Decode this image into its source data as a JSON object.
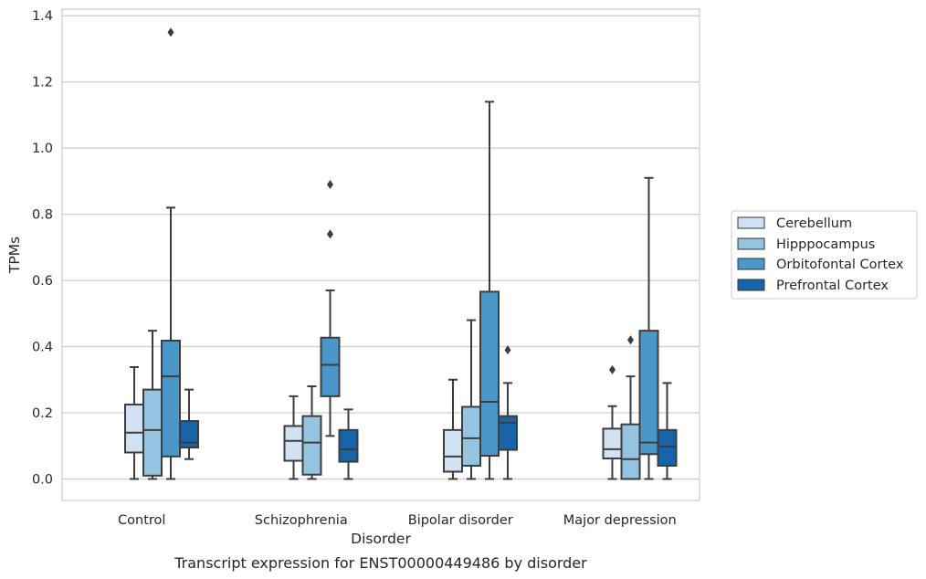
{
  "chart_data": {
    "type": "box",
    "title": "",
    "caption": "Transcript expression for ENST00000449486 by disorder",
    "xlabel": "Disorder",
    "ylabel": "TPMs",
    "ylim": [
      -0.065,
      1.42
    ],
    "yticks": [
      "0.0",
      "0.2",
      "0.4",
      "0.6",
      "0.8",
      "1.0",
      "1.2",
      "1.4"
    ],
    "grid": true,
    "legend_position": "right",
    "categories": [
      "Control",
      "Schizophrenia",
      "Bipolar disorder",
      "Major depression"
    ],
    "series": [
      {
        "name": "Cerebellum",
        "color": "#d0e1f2",
        "boxes": [
          {
            "whisker_low": 0.0,
            "q1": 0.08,
            "median": 0.14,
            "q3": 0.225,
            "whisker_high": 0.338,
            "outliers": []
          },
          {
            "whisker_low": 0.0,
            "q1": 0.055,
            "median": 0.115,
            "q3": 0.16,
            "whisker_high": 0.25,
            "outliers": []
          },
          {
            "whisker_low": 0.0,
            "q1": 0.022,
            "median": 0.068,
            "q3": 0.148,
            "whisker_high": 0.3,
            "outliers": []
          },
          {
            "whisker_low": 0.0,
            "q1": 0.062,
            "median": 0.09,
            "q3": 0.152,
            "whisker_high": 0.22,
            "outliers": [
              0.33
            ]
          }
        ]
      },
      {
        "name": "Hipppocampus",
        "color": "#94c4df",
        "boxes": [
          {
            "whisker_low": 0.0,
            "q1": 0.01,
            "median": 0.148,
            "q3": 0.27,
            "whisker_high": 0.448,
            "outliers": []
          },
          {
            "whisker_low": 0.0,
            "q1": 0.013,
            "median": 0.11,
            "q3": 0.19,
            "whisker_high": 0.28,
            "outliers": []
          },
          {
            "whisker_low": 0.0,
            "q1": 0.04,
            "median": 0.123,
            "q3": 0.218,
            "whisker_high": 0.48,
            "outliers": []
          },
          {
            "whisker_low": 0.0,
            "q1": 0.0,
            "median": 0.06,
            "q3": 0.165,
            "whisker_high": 0.31,
            "outliers": [
              0.42
            ]
          }
        ]
      },
      {
        "name": "Orbitofontal Cortex",
        "color": "#4a98c9",
        "boxes": [
          {
            "whisker_low": 0.0,
            "q1": 0.068,
            "median": 0.31,
            "q3": 0.418,
            "whisker_high": 0.82,
            "outliers": [
              1.35
            ]
          },
          {
            "whisker_low": 0.13,
            "q1": 0.25,
            "median": 0.345,
            "q3": 0.427,
            "whisker_high": 0.57,
            "outliers": [
              0.74,
              0.89
            ]
          },
          {
            "whisker_low": 0.0,
            "q1": 0.07,
            "median": 0.233,
            "q3": 0.566,
            "whisker_high": 1.14,
            "outliers": []
          },
          {
            "whisker_low": 0.0,
            "q1": 0.075,
            "median": 0.11,
            "q3": 0.448,
            "whisker_high": 0.91,
            "outliers": []
          }
        ]
      },
      {
        "name": "Prefrontal Cortex",
        "color": "#1764ab",
        "boxes": [
          {
            "whisker_low": 0.06,
            "q1": 0.095,
            "median": 0.11,
            "q3": 0.175,
            "whisker_high": 0.27,
            "outliers": []
          },
          {
            "whisker_low": 0.0,
            "q1": 0.052,
            "median": 0.09,
            "q3": 0.148,
            "whisker_high": 0.21,
            "outliers": []
          },
          {
            "whisker_low": 0.0,
            "q1": 0.088,
            "median": 0.17,
            "q3": 0.19,
            "whisker_high": 0.29,
            "outliers": [
              0.39
            ]
          },
          {
            "whisker_low": 0.0,
            "q1": 0.04,
            "median": 0.098,
            "q3": 0.148,
            "whisker_high": 0.29,
            "outliers": []
          }
        ]
      }
    ]
  }
}
